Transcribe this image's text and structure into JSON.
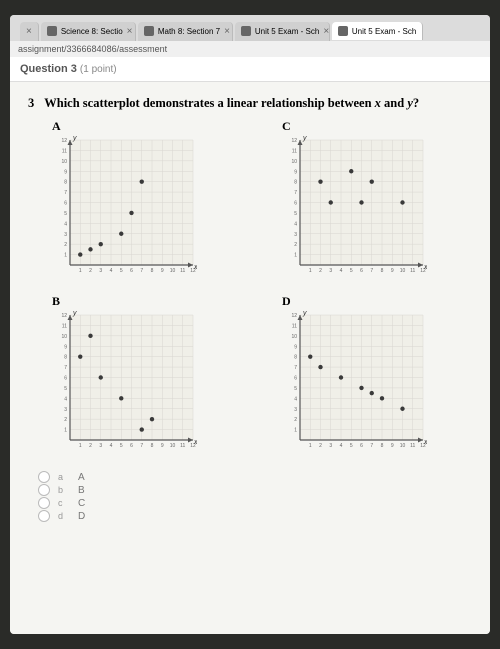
{
  "browser": {
    "tabs": [
      {
        "title": "",
        "close": "×"
      },
      {
        "title": "Science 8: Sectio",
        "close": "×"
      },
      {
        "title": "Math 8: Section 7",
        "close": "×"
      },
      {
        "title": "Unit 5 Exam - Sch",
        "close": "×"
      },
      {
        "title": "Unit 5 Exam - Sch",
        "close": "",
        "active": true
      }
    ],
    "url": "assignment/3366684086/assessment"
  },
  "question": {
    "header_label": "Question 3",
    "points": "(1 point)",
    "number": "3",
    "prompt_a": "Which scatterplot demonstrates a linear relationship between ",
    "var_x": "x",
    "prompt_b": " and ",
    "var_y": "y",
    "prompt_c": "?"
  },
  "plots": {
    "axis": {
      "xmin": 0,
      "xmax": 12,
      "ymin": 0,
      "ymax": 12,
      "grid_color": "#d8d6d0",
      "axis_color": "#555",
      "bg_color": "#f0efe8",
      "point_color": "#3a3a3a",
      "label_fontsize": 5,
      "axis_label_y": "y",
      "axis_label_x": "x"
    },
    "A": {
      "label": "A",
      "points": [
        [
          1,
          1
        ],
        [
          2,
          1.5
        ],
        [
          3,
          2
        ],
        [
          5,
          3
        ],
        [
          6,
          5
        ],
        [
          7,
          8
        ]
      ]
    },
    "B": {
      "label": "B",
      "points": [
        [
          1,
          8
        ],
        [
          2,
          10
        ],
        [
          3,
          6
        ],
        [
          5,
          4
        ],
        [
          7,
          1
        ],
        [
          8,
          2
        ]
      ]
    },
    "C": {
      "label": "C",
      "points": [
        [
          2,
          8
        ],
        [
          3,
          6
        ],
        [
          5,
          9
        ],
        [
          6,
          6
        ],
        [
          7,
          8
        ],
        [
          10,
          6
        ]
      ]
    },
    "D": {
      "label": "D",
      "points": [
        [
          1,
          8
        ],
        [
          2,
          7
        ],
        [
          4,
          6
        ],
        [
          6,
          5
        ],
        [
          7,
          4.5
        ],
        [
          8,
          4
        ],
        [
          10,
          3
        ]
      ]
    }
  },
  "answers": [
    {
      "letter": "a",
      "text": "A"
    },
    {
      "letter": "b",
      "text": "B"
    },
    {
      "letter": "c",
      "text": "C"
    },
    {
      "letter": "d",
      "text": "D"
    }
  ]
}
